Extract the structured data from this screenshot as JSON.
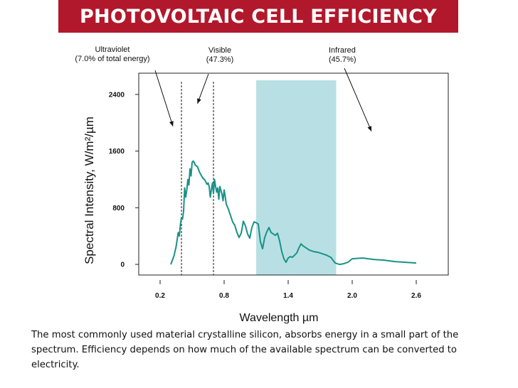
{
  "slide": {
    "title": "PHOTOVOLTAIC CELL EFFICIENCY",
    "caption": "The most commonly used material crystalline silicon, absorbs energy in a small part of the spectrum. Efficiency depends on how much of the available spectrum can be converted to electricity.",
    "title_bar_color": "#b2182b"
  },
  "chart_data": {
    "type": "line",
    "title": "",
    "xlabel": "Wavelength µm",
    "ylabel": "Spectral Intensity, W/m²/µm",
    "xlim": [
      0.0,
      2.9
    ],
    "ylim": [
      -150,
      2700
    ],
    "x_ticks": [
      0.2,
      0.8,
      1.4,
      2.0,
      2.6
    ],
    "x_tick_labels": [
      "0.2",
      "0.8",
      "1.4",
      "2.0",
      "2.6"
    ],
    "y_ticks": [
      0,
      800,
      1600,
      2400
    ],
    "y_tick_labels": [
      "0",
      "800",
      "1600",
      "2400"
    ],
    "grid": false,
    "line_color": "#1a9187",
    "series": [
      {
        "x": [
          0.3,
          0.33,
          0.35,
          0.37,
          0.38,
          0.39,
          0.4,
          0.41,
          0.42,
          0.43,
          0.44,
          0.45,
          0.46,
          0.47,
          0.48,
          0.49,
          0.5,
          0.51,
          0.52,
          0.53,
          0.55,
          0.57,
          0.6,
          0.62,
          0.63,
          0.64,
          0.65,
          0.66,
          0.67,
          0.68,
          0.69,
          0.7,
          0.71,
          0.72,
          0.73,
          0.74,
          0.75,
          0.76,
          0.78,
          0.79,
          0.8,
          0.81,
          0.82,
          0.84,
          0.86,
          0.88,
          0.9,
          0.92,
          0.94,
          0.96,
          0.98,
          1.0,
          1.02,
          1.04,
          1.06,
          1.08,
          1.1,
          1.12,
          1.14,
          1.16,
          1.18,
          1.2,
          1.22,
          1.24,
          1.26,
          1.28,
          1.3,
          1.32,
          1.34,
          1.36,
          1.38,
          1.4,
          1.42,
          1.44,
          1.46,
          1.48,
          1.5,
          1.52,
          1.54,
          1.56,
          1.58,
          1.6,
          1.64,
          1.68,
          1.72,
          1.76,
          1.8,
          1.84,
          1.88,
          1.92,
          1.96,
          2.0,
          2.1,
          2.2,
          2.3,
          2.4,
          2.5,
          2.6
        ],
        "y": [
          0,
          120,
          250,
          450,
          400,
          560,
          660,
          640,
          750,
          1080,
          950,
          1050,
          1200,
          1120,
          1350,
          1250,
          1440,
          1460,
          1440,
          1400,
          1380,
          1300,
          1220,
          1190,
          1160,
          1130,
          1150,
          1100,
          950,
          1050,
          1150,
          1000,
          1200,
          1100,
          1020,
          1080,
          920,
          1100,
          990,
          900,
          1050,
          960,
          850,
          780,
          690,
          600,
          550,
          450,
          380,
          440,
          610,
          540,
          430,
          370,
          520,
          600,
          590,
          570,
          320,
          220,
          380,
          460,
          520,
          450,
          430,
          410,
          440,
          330,
          180,
          80,
          30,
          90,
          110,
          100,
          130,
          160,
          230,
          290,
          260,
          240,
          220,
          200,
          180,
          170,
          150,
          130,
          100,
          20,
          0,
          10,
          30,
          80,
          90,
          70,
          60,
          40,
          30,
          20
        ]
      }
    ],
    "regions": [
      {
        "type": "band",
        "x": [
          1.1,
          1.85
        ],
        "color": "#b8e0e4"
      },
      {
        "type": "vline",
        "x": 0.4,
        "style": "dashed"
      },
      {
        "type": "vline",
        "x": 0.7,
        "style": "dashed"
      }
    ],
    "annotations": [
      {
        "lines": [
          "Ultraviolet",
          "(7.0% of total energy)"
        ],
        "arrow_to_x": 0.32,
        "arrow_to_y": 1950
      },
      {
        "lines": [
          "Visible",
          "(47.3%)"
        ],
        "arrow_to_x": 0.55,
        "arrow_to_y": 2270
      },
      {
        "lines": [
          "Infrared",
          "(45.7%)"
        ],
        "arrow_to_x": 2.18,
        "arrow_to_y": 1880
      }
    ]
  }
}
